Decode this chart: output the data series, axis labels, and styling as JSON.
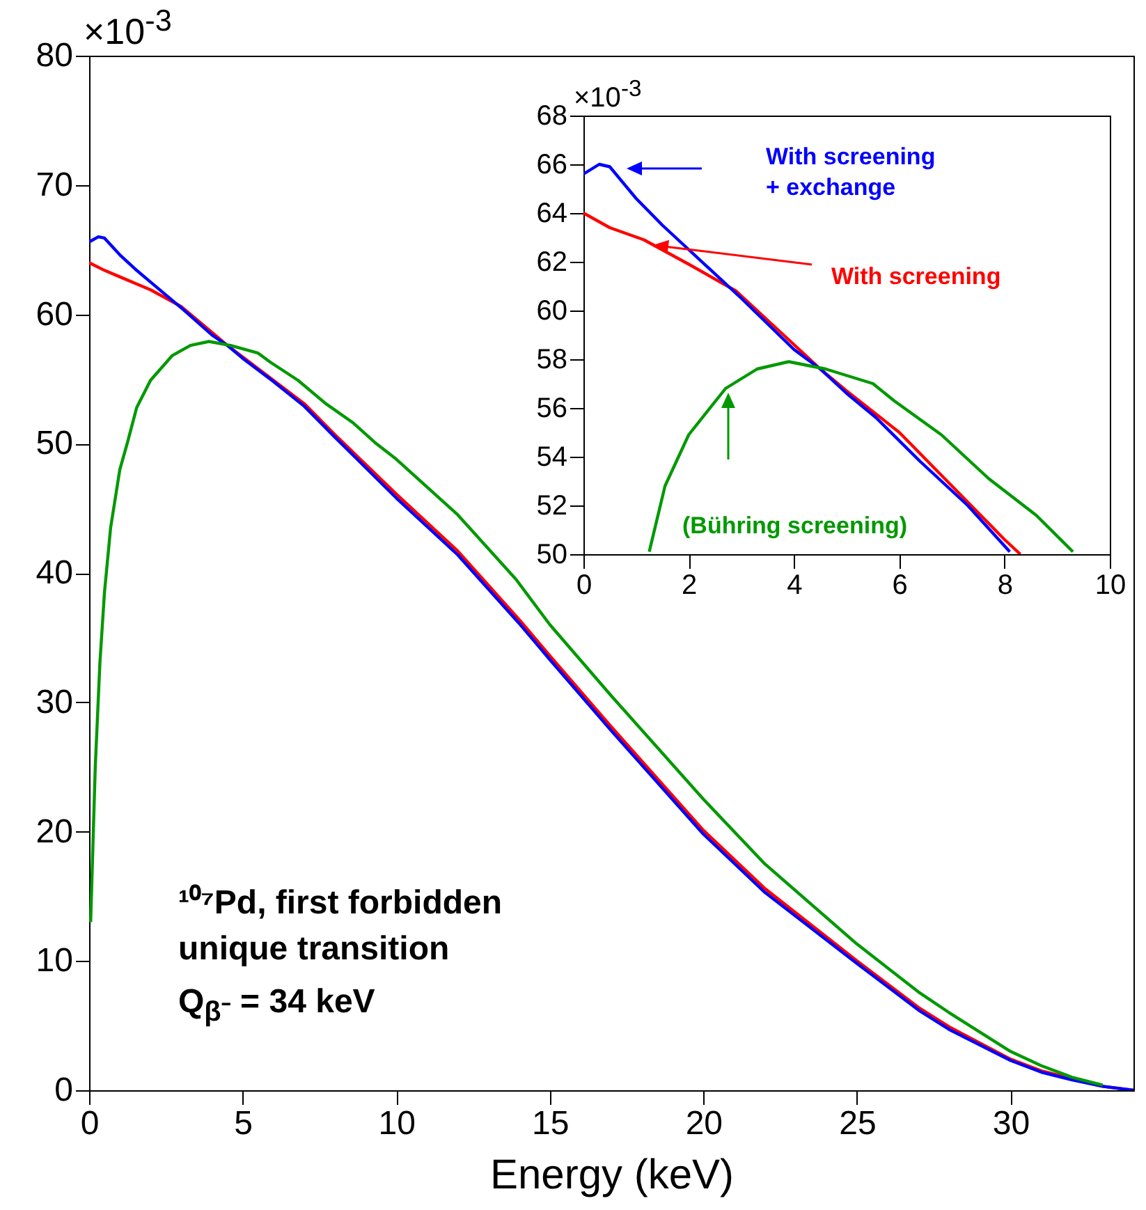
{
  "chart_data": [
    {
      "type": "line",
      "xlabel": "Energy (keV)",
      "xlim": [
        0,
        34
      ],
      "ylim": [
        0,
        80
      ],
      "xticks": [
        0,
        5,
        10,
        15,
        20,
        25,
        30
      ],
      "yticks": [
        0,
        10,
        20,
        30,
        40,
        50,
        60,
        70,
        80
      ],
      "series": [
        {
          "color": "#ff0000",
          "x": [
            0,
            0.5,
            1,
            1.5,
            2,
            3,
            4,
            4.5,
            5,
            6,
            7,
            8,
            10,
            12,
            14,
            15,
            17,
            20,
            22,
            25,
            27,
            28,
            30,
            31,
            32,
            33,
            34
          ],
          "values": [
            64.0,
            63.4,
            62.9,
            62.4,
            61.9,
            60.6,
            58.6,
            57.6,
            56.7,
            54.9,
            53.1,
            50.7,
            46.1,
            41.7,
            36.4,
            33.6,
            28.1,
            20.1,
            15.6,
            10.0,
            6.4,
            4.9,
            2.4,
            1.5,
            0.9,
            0.3,
            0
          ]
        },
        {
          "color": "#0000ff",
          "x": [
            0,
            0.3,
            0.5,
            1,
            1.5,
            2,
            3,
            4,
            4.5,
            5,
            6,
            7,
            8,
            10,
            12,
            14,
            15,
            17,
            20,
            22,
            25,
            27,
            28,
            30,
            31,
            32,
            33,
            34
          ],
          "values": [
            65.6,
            66.0,
            65.9,
            64.6,
            63.5,
            62.5,
            60.5,
            58.4,
            57.6,
            56.6,
            54.8,
            52.9,
            50.5,
            45.8,
            41.4,
            36.1,
            33.3,
            27.8,
            19.8,
            15.3,
            9.8,
            6.2,
            4.7,
            2.3,
            1.4,
            0.8,
            0.3,
            0
          ]
        },
        {
          "color": "#009900",
          "x": [
            0.05,
            0.2,
            0.35,
            0.5,
            0.7,
            1,
            1.25,
            1.55,
            2,
            2.7,
            3.3,
            3.9,
            4.6,
            5.5,
            5.9,
            6.8,
            7.7,
            8.6,
            9.3,
            10,
            12,
            13.9,
            15,
            17,
            20,
            22,
            25,
            27,
            28,
            30,
            31,
            32,
            33
          ],
          "values": [
            13,
            25,
            33,
            38.5,
            43.5,
            48,
            50.1,
            52.8,
            54.9,
            56.8,
            57.6,
            57.9,
            57.6,
            57.0,
            56.3,
            54.9,
            53.1,
            51.6,
            50.1,
            48.8,
            44.5,
            39.5,
            36.0,
            30.5,
            22.5,
            17.5,
            11.3,
            7.6,
            6.0,
            3.0,
            1.9,
            1.0,
            0.4
          ]
        }
      ],
      "annotations": [
        "×10$^{-3}$",
        "¹⁰⁷Pd, first forbidden",
        "unique transition",
        "Q$_{β⁻}$ = 34 keV"
      ]
    },
    {
      "type": "line",
      "xlim": [
        0,
        10
      ],
      "ylim": [
        50,
        68
      ],
      "xticks": [
        0,
        2,
        4,
        6,
        8,
        10
      ],
      "yticks": [
        50,
        52,
        54,
        56,
        58,
        60,
        62,
        64,
        66,
        68
      ],
      "series": [
        {
          "name": "With screening",
          "color": "#ff0000",
          "x": [
            0,
            0.5,
            1.15,
            2,
            2.9,
            3.8,
            4.5,
            5,
            6,
            7,
            8,
            8.3
          ],
          "values": [
            64.0,
            63.4,
            62.9,
            61.9,
            60.8,
            59.0,
            57.6,
            56.7,
            55.0,
            52.8,
            50.6,
            50.0
          ]
        },
        {
          "name": "With screening + exchange",
          "color": "#0000ff",
          "x": [
            0,
            0.3,
            0.5,
            1,
            1.5,
            2,
            3,
            4,
            4.5,
            5,
            5.56,
            6.4,
            7.3,
            8.1
          ],
          "values": [
            65.6,
            66.0,
            65.9,
            64.6,
            63.5,
            62.5,
            60.5,
            58.4,
            57.6,
            56.6,
            55.6,
            53.8,
            52.0,
            50.1
          ]
        },
        {
          "name": "(Bühring screening)",
          "color": "#009900",
          "x": [
            1.25,
            1.55,
            2,
            2.7,
            3.3,
            3.9,
            4.6,
            5.5,
            5.9,
            6.8,
            7.7,
            8.6,
            9.3
          ],
          "values": [
            50.1,
            52.8,
            54.9,
            56.8,
            57.6,
            57.9,
            57.6,
            57.0,
            56.3,
            54.9,
            53.1,
            51.6,
            50.1
          ]
        }
      ],
      "annotations": [
        "×10$^{-3}$"
      ]
    }
  ]
}
